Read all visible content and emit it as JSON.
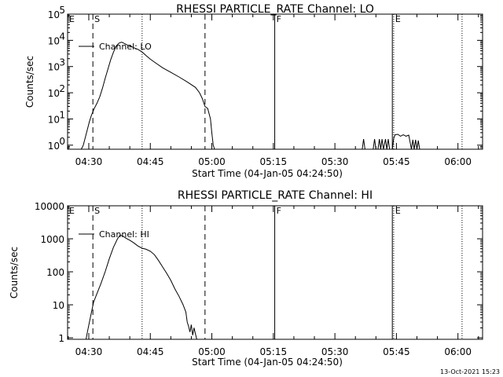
{
  "footer": {
    "timestamp": "13-Oct-2021 15:23"
  },
  "chart_data": [
    {
      "type": "line",
      "title": "RHESSI PARTICLE_RATE Channel: LO",
      "xlabel": "Start Time (04-Jan-05 04:24:50)",
      "ylabel": "Counts/sec",
      "yscale": "log",
      "xlim": [
        "04:24:50",
        "06:06:00"
      ],
      "ylim": [
        0.7,
        100000
      ],
      "xticks": [
        "04:30",
        "04:45",
        "05:00",
        "05:15",
        "05:30",
        "05:45",
        "06:00"
      ],
      "yticks": [
        {
          "value": 1,
          "base": "10",
          "exp": "0"
        },
        {
          "value": 10,
          "base": "10",
          "exp": "1"
        },
        {
          "value": 100,
          "base": "10",
          "exp": "2"
        },
        {
          "value": 1000,
          "base": "10",
          "exp": "3"
        },
        {
          "value": 10000,
          "base": "10",
          "exp": "4"
        },
        {
          "value": 100000,
          "base": "10",
          "exp": "5"
        }
      ],
      "legend": {
        "placement": "top-left",
        "entries": [
          "Channel: LO"
        ]
      },
      "markers": [
        {
          "label": "E",
          "time": "04:24:50",
          "style": "solid"
        },
        {
          "label": "S",
          "time": "04:31:00",
          "style": "dashed"
        },
        {
          "label": "",
          "time": "04:43:00",
          "style": "dotted"
        },
        {
          "label": "",
          "time": "04:58:20",
          "style": "dashed"
        },
        {
          "label": "F",
          "time": "05:15:20",
          "style": "solid"
        },
        {
          "label": "",
          "time": "05:44:00",
          "style": "solid"
        },
        {
          "label": "E",
          "time": "05:44:20",
          "style": "dotted"
        },
        {
          "label": "",
          "time": "06:01:00",
          "style": "dotted"
        }
      ],
      "series": [
        {
          "name": "Channel: LO",
          "segments": [
            [
              [
                "04:28:10",
                0.7
              ],
              [
                "04:28:40",
                1
              ],
              [
                "04:29:10",
                2
              ],
              [
                "04:29:40",
                4
              ],
              [
                "04:30:10",
                8
              ],
              [
                "04:30:40",
                14
              ],
              [
                "04:31:20",
                25
              ],
              [
                "04:32:00",
                40
              ],
              [
                "04:32:40",
                70
              ],
              [
                "04:33:20",
                150
              ],
              [
                "04:34:00",
                350
              ],
              [
                "04:34:40",
                800
              ],
              [
                "04:35:20",
                1800
              ],
              [
                "04:36:00",
                3500
              ],
              [
                "04:36:40",
                6000
              ],
              [
                "04:37:20",
                7800
              ],
              [
                "04:38:00",
                8500
              ],
              [
                "04:38:40",
                7600
              ],
              [
                "04:39:20",
                6700
              ],
              [
                "04:40:00",
                6200
              ],
              [
                "04:41:00",
                5200
              ],
              [
                "04:42:00",
                4500
              ],
              [
                "04:43:00",
                3600
              ],
              [
                "04:44:00",
                2600
              ],
              [
                "04:45:00",
                1900
              ],
              [
                "04:46:30",
                1300
              ],
              [
                "04:48:00",
                900
              ],
              [
                "04:50:00",
                600
              ],
              [
                "04:52:00",
                400
              ],
              [
                "04:54:00",
                260
              ],
              [
                "04:56:00",
                160
              ],
              [
                "04:57:00",
                100
              ],
              [
                "04:57:40",
                60
              ],
              [
                "04:58:20",
                30
              ],
              [
                "04:59:00",
                25
              ],
              [
                "04:59:40",
                10
              ],
              [
                "05:00:00",
                3
              ],
              [
                "05:00:20",
                1
              ],
              [
                "05:00:40",
                0.7
              ]
            ],
            [
              [
                "05:36:40",
                0.7
              ],
              [
                "05:37:00",
                1.7
              ],
              [
                "05:37:20",
                0.7
              ]
            ],
            [
              [
                "05:39:20",
                0.7
              ],
              [
                "05:39:40",
                1.7
              ],
              [
                "05:40:00",
                0.7
              ]
            ],
            [
              [
                "05:40:30",
                0.7
              ],
              [
                "05:40:50",
                1.7
              ],
              [
                "05:41:10",
                0.7
              ],
              [
                "05:41:30",
                1.7
              ],
              [
                "05:41:50",
                0.7
              ],
              [
                "05:42:20",
                1.7
              ],
              [
                "05:42:40",
                0.7
              ],
              [
                "05:43:00",
                1.7
              ],
              [
                "05:43:20",
                0.7
              ]
            ],
            [
              [
                "05:44:00",
                0.7
              ],
              [
                "05:44:20",
                1.8
              ],
              [
                "05:44:40",
                2.5
              ],
              [
                "05:45:20",
                2.6
              ],
              [
                "05:46:00",
                2.2
              ],
              [
                "05:46:40",
                2.5
              ],
              [
                "05:47:20",
                2.2
              ],
              [
                "05:48:00",
                2.4
              ],
              [
                "05:48:20",
                1.3
              ],
              [
                "05:48:40",
                0.7
              ],
              [
                "05:49:00",
                1.6
              ],
              [
                "05:49:20",
                0.7
              ],
              [
                "05:49:40",
                1.6
              ],
              [
                "05:50:00",
                0.7
              ],
              [
                "05:50:20",
                1.5
              ],
              [
                "05:50:40",
                0.7
              ]
            ]
          ]
        }
      ]
    },
    {
      "type": "line",
      "title": "RHESSI PARTICLE_RATE Channel: HI",
      "xlabel": "Start Time (04-Jan-05 04:24:50)",
      "ylabel": "Counts/sec",
      "yscale": "log",
      "xlim": [
        "04:24:50",
        "06:06:00"
      ],
      "ylim": [
        0.9,
        10000
      ],
      "xticks": [
        "04:30",
        "04:45",
        "05:00",
        "05:15",
        "05:30",
        "05:45",
        "06:00"
      ],
      "yticks": [
        {
          "value": 1,
          "label": "1"
        },
        {
          "value": 10,
          "label": "10"
        },
        {
          "value": 100,
          "label": "100"
        },
        {
          "value": 1000,
          "label": "1000"
        },
        {
          "value": 10000,
          "label": "10000"
        }
      ],
      "legend": {
        "placement": "top-left",
        "entries": [
          "Channel: HI"
        ]
      },
      "markers": [
        {
          "label": "E",
          "time": "04:24:50",
          "style": "solid"
        },
        {
          "label": "S",
          "time": "04:31:00",
          "style": "dashed"
        },
        {
          "label": "",
          "time": "04:43:00",
          "style": "dotted"
        },
        {
          "label": "",
          "time": "04:58:20",
          "style": "dashed"
        },
        {
          "label": "F",
          "time": "05:15:20",
          "style": "solid"
        },
        {
          "label": "",
          "time": "05:44:00",
          "style": "solid"
        },
        {
          "label": "E",
          "time": "05:44:20",
          "style": "dotted"
        },
        {
          "label": "",
          "time": "06:01:00",
          "style": "dotted"
        }
      ],
      "series": [
        {
          "name": "Channel: HI",
          "segments": [
            [
              [
                "04:29:20",
                0.9
              ],
              [
                "04:29:40",
                1.5
              ],
              [
                "04:30:10",
                3
              ],
              [
                "04:30:40",
                6
              ],
              [
                "04:31:10",
                12
              ],
              [
                "04:32:00",
                22
              ],
              [
                "04:33:00",
                45
              ],
              [
                "04:34:00",
                100
              ],
              [
                "04:35:00",
                250
              ],
              [
                "04:36:00",
                550
              ],
              [
                "04:37:00",
                1000
              ],
              [
                "04:37:40",
                1300
              ],
              [
                "04:38:20",
                1200
              ],
              [
                "04:39:00",
                1050
              ],
              [
                "04:40:00",
                900
              ],
              [
                "04:41:00",
                750
              ],
              [
                "04:42:00",
                600
              ],
              [
                "04:43:00",
                520
              ],
              [
                "04:44:00",
                480
              ],
              [
                "04:45:00",
                420
              ],
              [
                "04:46:00",
                330
              ],
              [
                "04:47:00",
                220
              ],
              [
                "04:48:00",
                140
              ],
              [
                "04:49:00",
                90
              ],
              [
                "04:50:00",
                55
              ],
              [
                "04:51:00",
                30
              ],
              [
                "04:52:00",
                18
              ],
              [
                "04:53:00",
                10
              ],
              [
                "04:53:40",
                6
              ],
              [
                "04:54:00",
                3
              ],
              [
                "04:54:20",
                2.2
              ],
              [
                "04:54:40",
                1.5
              ],
              [
                "04:55:00",
                2.5
              ],
              [
                "04:55:20",
                1.2
              ],
              [
                "04:55:40",
                2
              ],
              [
                "04:56:00",
                1.3
              ],
              [
                "04:56:20",
                0.9
              ]
            ]
          ]
        }
      ]
    }
  ]
}
